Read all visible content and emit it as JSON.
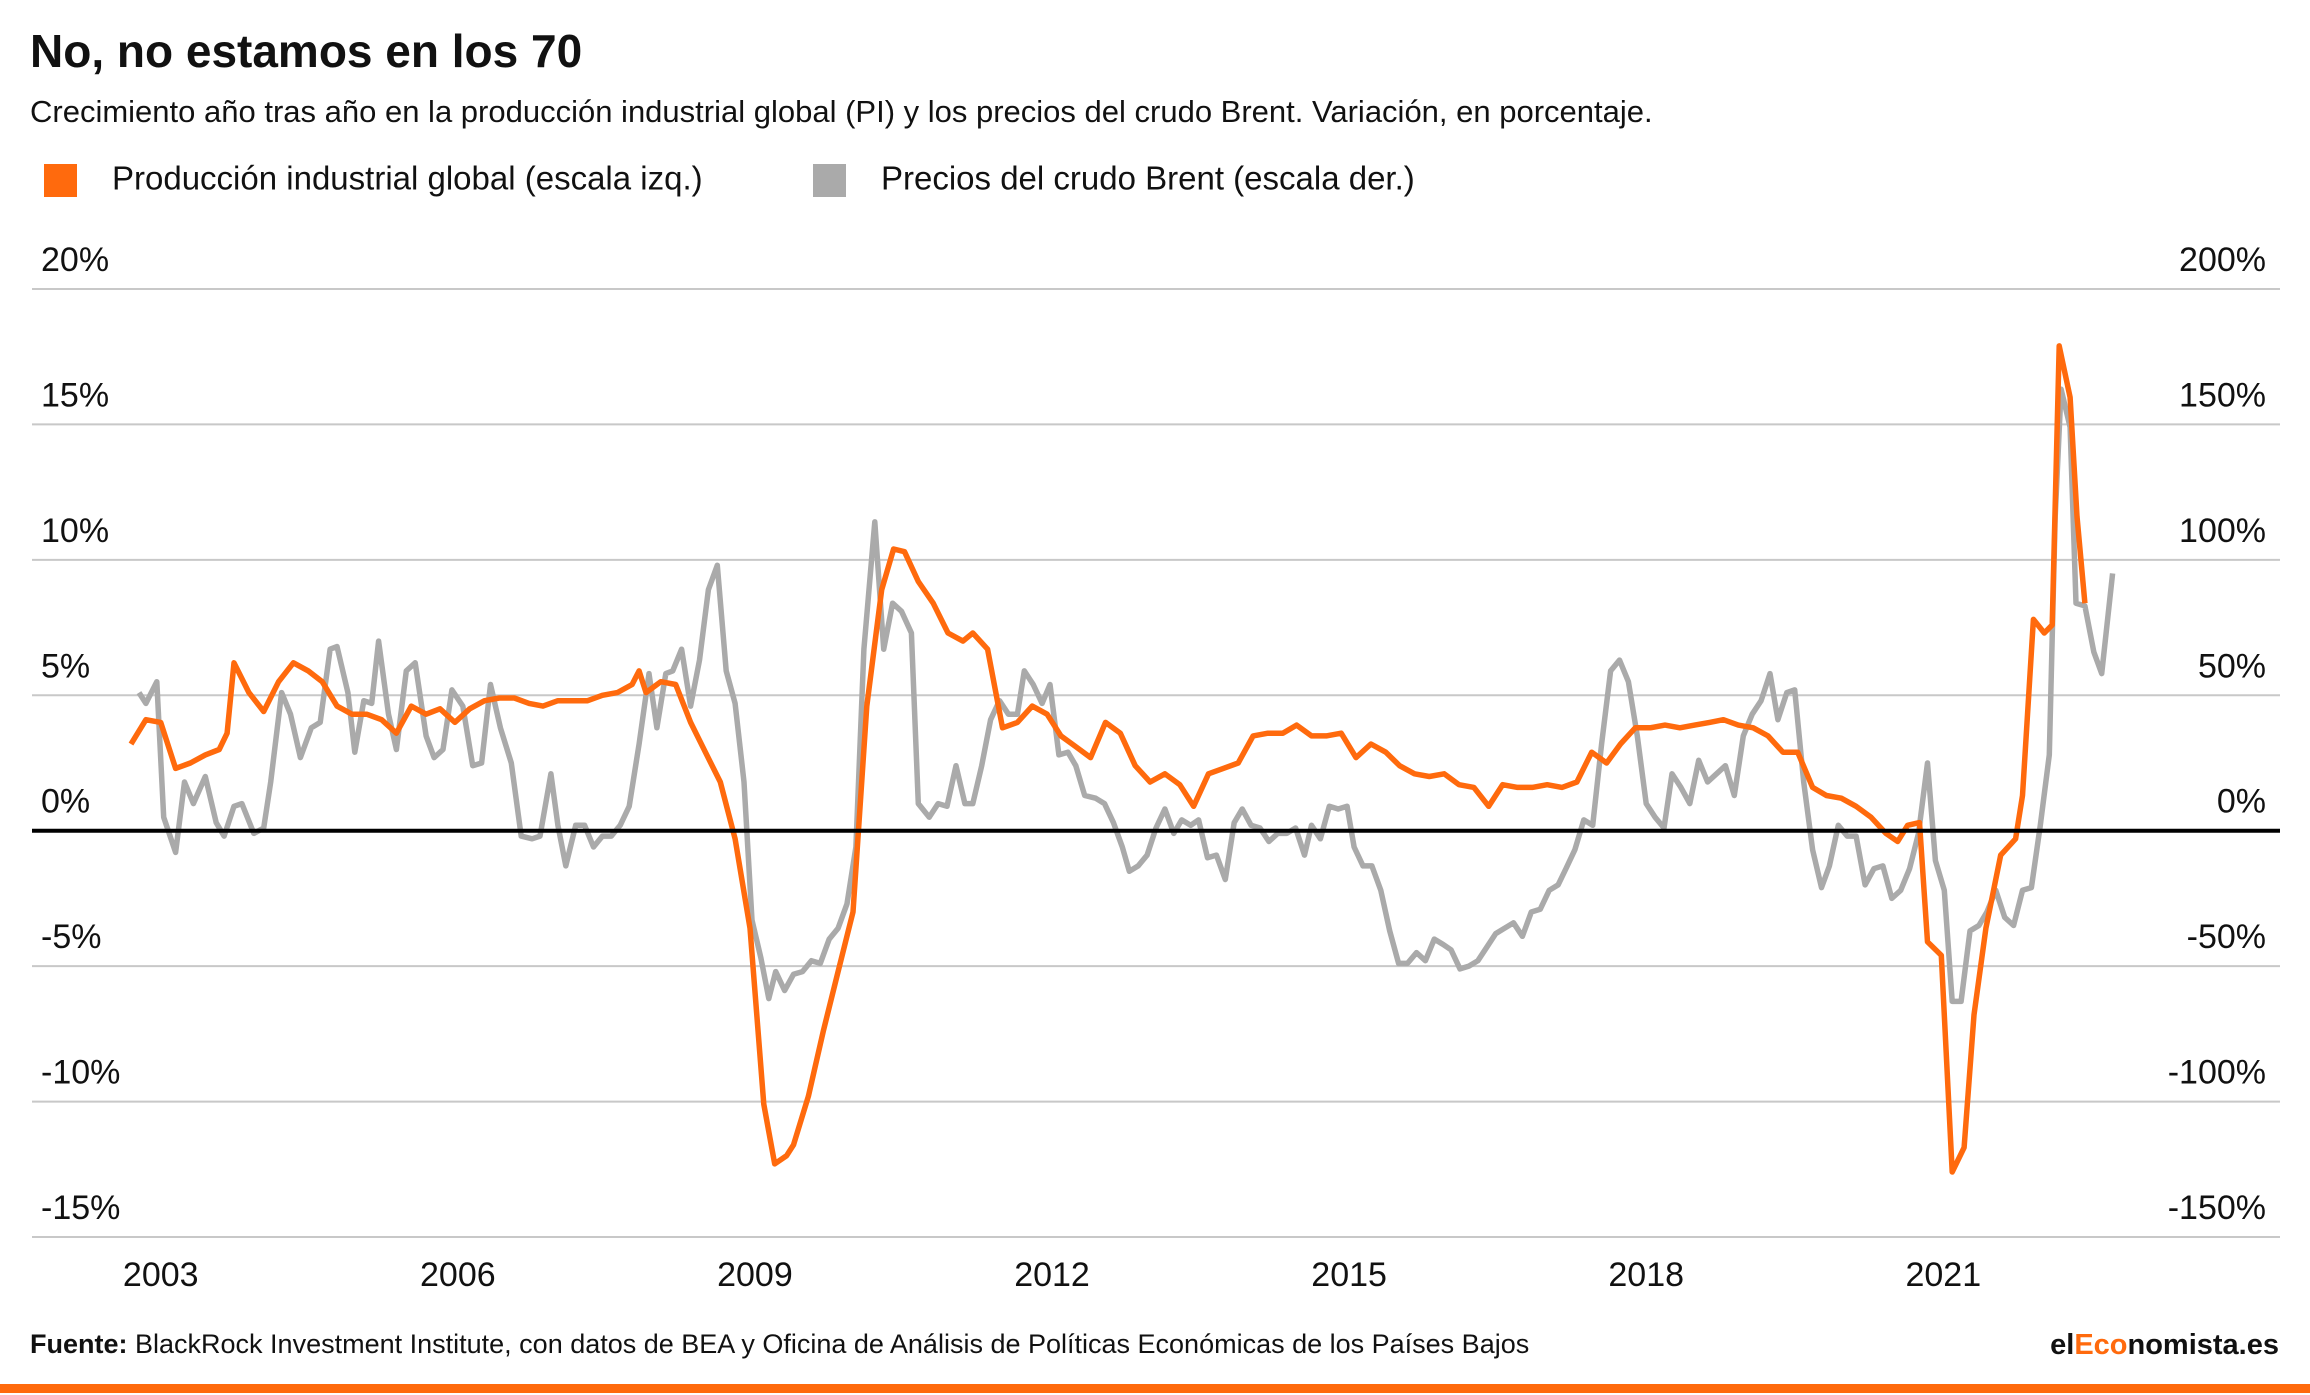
{
  "chart_data": {
    "type": "line",
    "title": "No, no estamos en los 70",
    "subtitle": "Crecimiento año tras año en la producción industrial global (PI) y los precios del crudo Brent. Variación, en porcentaje.",
    "source_label": "Fuente:",
    "source": "BlackRock Investment Institute, con datos de BEA y Oficina de Análisis de Políticas Económicas de los Países Bajos",
    "brand": [
      "el",
      "Eco",
      "nomista.es"
    ],
    "xlim": [
      2001.7,
      2024.4
    ],
    "xticks": [
      2003,
      2006,
      2009,
      2012,
      2015,
      2018,
      2021
    ],
    "ylim": [
      -15,
      20
    ],
    "yticks": [
      {
        "value": -15,
        "label": "-15%"
      },
      {
        "value": -10,
        "label": "-10%"
      },
      {
        "value": -5,
        "label": "-5%"
      },
      {
        "value": 0,
        "label": "0%"
      },
      {
        "value": 5,
        "label": "5%"
      },
      {
        "value": 10,
        "label": "10%"
      },
      {
        "value": 15,
        "label": "15%"
      },
      {
        "value": 20,
        "label": "20%"
      }
    ],
    "y2lim": [
      -150,
      200
    ],
    "y2ticks": [
      {
        "value": -150,
        "label": "-150%"
      },
      {
        "value": -100,
        "label": "-100%"
      },
      {
        "value": -50,
        "label": "-50%"
      },
      {
        "value": 0,
        "label": "0%"
      },
      {
        "value": 50,
        "label": "50%"
      },
      {
        "value": 100,
        "label": "100%"
      },
      {
        "value": 150,
        "label": "150%"
      },
      {
        "value": 200,
        "label": "200%"
      }
    ],
    "grid": true,
    "legend": "top-left",
    "series": [
      {
        "name": "Producción industrial global (escala izq.)",
        "color": "#ff6a0d",
        "axis": "y",
        "x": [
          2002.7,
          2002.85,
          2003.0,
          2003.15,
          2003.3,
          2003.45,
          2003.59,
          2003.67,
          2003.74,
          2003.89,
          2004.04,
          2004.19,
          2004.34,
          2004.49,
          2004.63,
          2004.78,
          2004.93,
          2005.08,
          2005.23,
          2005.38,
          2005.53,
          2005.68,
          2005.82,
          2005.97,
          2006.12,
          2006.27,
          2006.42,
          2006.57,
          2006.72,
          2006.86,
          2007.01,
          2007.16,
          2007.31,
          2007.46,
          2007.61,
          2007.76,
          2007.83,
          2007.9,
          2008.05,
          2008.2,
          2008.35,
          2008.5,
          2008.65,
          2008.8,
          2008.95,
          2009.09,
          2009.2,
          2009.32,
          2009.39,
          2009.54,
          2009.69,
          2009.84,
          2009.99,
          2010.13,
          2010.28,
          2010.4,
          2010.51,
          2010.65,
          2010.8,
          2010.95,
          2011.1,
          2011.2,
          2011.35,
          2011.5,
          2011.65,
          2011.8,
          2011.95,
          2012.09,
          2012.24,
          2012.39,
          2012.54,
          2012.69,
          2012.84,
          2012.99,
          2013.14,
          2013.29,
          2013.43,
          2013.58,
          2013.73,
          2013.88,
          2014.03,
          2014.18,
          2014.33,
          2014.47,
          2014.62,
          2014.77,
          2014.92,
          2015.07,
          2015.22,
          2015.37,
          2015.51,
          2015.66,
          2015.81,
          2015.96,
          2016.11,
          2016.26,
          2016.41,
          2016.55,
          2016.7,
          2016.85,
          2017.0,
          2017.15,
          2017.3,
          2017.45,
          2017.6,
          2017.74,
          2017.89,
          2018.04,
          2018.19,
          2018.34,
          2018.49,
          2018.64,
          2018.78,
          2018.93,
          2019.08,
          2019.23,
          2019.38,
          2019.53,
          2019.68,
          2019.82,
          2019.97,
          2020.12,
          2020.27,
          2020.42,
          2020.54,
          2020.64,
          2020.76,
          2020.84,
          2020.98,
          2021.09,
          2021.21,
          2021.31,
          2021.43,
          2021.58,
          2021.73,
          2021.8,
          2021.91,
          2022.02,
          2022.1,
          2022.17,
          2022.28,
          2022.35,
          2022.43
        ],
        "values": [
          3.2,
          4.1,
          4.0,
          2.3,
          2.5,
          2.8,
          3.0,
          3.6,
          6.2,
          5.1,
          4.4,
          5.5,
          6.2,
          5.9,
          5.5,
          4.6,
          4.3,
          4.3,
          4.1,
          3.6,
          4.6,
          4.3,
          4.5,
          4.0,
          4.5,
          4.8,
          4.9,
          4.9,
          4.7,
          4.6,
          4.8,
          4.8,
          4.8,
          5.0,
          5.1,
          5.4,
          5.9,
          5.1,
          5.5,
          5.4,
          4.0,
          2.9,
          1.8,
          -0.3,
          -3.6,
          -10.1,
          -12.3,
          -12.0,
          -11.6,
          -9.8,
          -7.4,
          -5.2,
          -3.0,
          4.6,
          8.9,
          10.4,
          10.3,
          9.2,
          8.4,
          7.3,
          7.0,
          7.3,
          6.7,
          3.8,
          4.0,
          4.6,
          4.3,
          3.5,
          3.1,
          2.7,
          4.0,
          3.6,
          2.4,
          1.8,
          2.1,
          1.7,
          0.9,
          2.1,
          2.3,
          2.5,
          3.5,
          3.6,
          3.6,
          3.9,
          3.5,
          3.5,
          3.6,
          2.7,
          3.2,
          2.9,
          2.4,
          2.1,
          2.0,
          2.1,
          1.7,
          1.6,
          0.9,
          1.7,
          1.6,
          1.6,
          1.7,
          1.6,
          1.8,
          2.9,
          2.5,
          3.2,
          3.8,
          3.8,
          3.9,
          3.8,
          3.9,
          4.0,
          4.1,
          3.9,
          3.8,
          3.5,
          2.9,
          2.9,
          1.6,
          1.3,
          1.2,
          0.9,
          0.5,
          -0.1,
          -0.4,
          0.2,
          0.3,
          -4.1,
          -4.6,
          -12.6,
          -11.7,
          -6.8,
          -3.6,
          -0.9,
          -0.3,
          1.3,
          7.8,
          7.3,
          7.6,
          17.9,
          16.0,
          11.6,
          8.4
        ]
      },
      {
        "name": "Precios del crudo Brent (escala der.)",
        "color": "#aaaaaa",
        "axis": "y2",
        "x": [
          2002.78,
          2002.85,
          2002.96,
          2003.03,
          2003.15,
          2003.24,
          2003.33,
          2003.45,
          2003.56,
          2003.64,
          2003.74,
          2003.82,
          2003.94,
          2004.04,
          2004.11,
          2004.22,
          2004.31,
          2004.41,
          2004.52,
          2004.61,
          2004.71,
          2004.78,
          2004.89,
          2004.96,
          2005.05,
          2005.13,
          2005.2,
          2005.3,
          2005.38,
          2005.48,
          2005.57,
          2005.68,
          2005.76,
          2005.85,
          2005.94,
          2006.05,
          2006.15,
          2006.24,
          2006.33,
          2006.43,
          2006.54,
          2006.64,
          2006.75,
          2006.83,
          2006.94,
          2007.01,
          2007.09,
          2007.19,
          2007.28,
          2007.37,
          2007.46,
          2007.55,
          2007.64,
          2007.73,
          2007.83,
          2007.93,
          2008.01,
          2008.1,
          2008.17,
          2008.26,
          2008.35,
          2008.44,
          2008.53,
          2008.62,
          2008.71,
          2008.8,
          2008.89,
          2008.97,
          2009.06,
          2009.14,
          2009.21,
          2009.3,
          2009.39,
          2009.48,
          2009.57,
          2009.66,
          2009.75,
          2009.84,
          2009.93,
          2010.02,
          2010.1,
          2010.21,
          2010.3,
          2010.39,
          2010.48,
          2010.58,
          2010.65,
          2010.76,
          2010.85,
          2010.94,
          2011.03,
          2011.12,
          2011.2,
          2011.29,
          2011.38,
          2011.47,
          2011.56,
          2011.65,
          2011.72,
          2011.81,
          2011.9,
          2011.98,
          2012.07,
          2012.16,
          2012.24,
          2012.33,
          2012.44,
          2012.53,
          2012.62,
          2012.71,
          2012.78,
          2012.87,
          2012.96,
          2013.05,
          2013.14,
          2013.23,
          2013.31,
          2013.4,
          2013.48,
          2013.57,
          2013.66,
          2013.75,
          2013.84,
          2013.92,
          2014.01,
          2014.1,
          2014.19,
          2014.28,
          2014.37,
          2014.46,
          2014.55,
          2014.62,
          2014.71,
          2014.8,
          2014.89,
          2014.98,
          2015.05,
          2015.14,
          2015.23,
          2015.32,
          2015.41,
          2015.5,
          2015.59,
          2015.68,
          2015.77,
          2015.86,
          2015.95,
          2016.03,
          2016.12,
          2016.21,
          2016.3,
          2016.39,
          2016.48,
          2016.57,
          2016.66,
          2016.75,
          2016.84,
          2016.93,
          2017.02,
          2017.11,
          2017.19,
          2017.28,
          2017.37,
          2017.46,
          2017.55,
          2017.64,
          2017.73,
          2017.82,
          2017.91,
          2018.0,
          2018.09,
          2018.18,
          2018.26,
          2018.35,
          2018.44,
          2018.53,
          2018.62,
          2018.71,
          2018.8,
          2018.89,
          2018.98,
          2019.07,
          2019.16,
          2019.25,
          2019.33,
          2019.42,
          2019.5,
          2019.59,
          2019.68,
          2019.77,
          2019.85,
          2019.94,
          2020.03,
          2020.12,
          2020.21,
          2020.3,
          2020.39,
          2020.48,
          2020.57,
          2020.66,
          2020.75,
          2020.84,
          2020.92,
          2021.01,
          2021.09,
          2021.18,
          2021.27,
          2021.36,
          2021.44,
          2021.53,
          2021.62,
          2021.71,
          2021.8,
          2021.89,
          2021.98,
          2022.07,
          2022.13,
          2022.19,
          2022.28,
          2022.34,
          2022.43,
          2022.52,
          2022.6,
          2022.71
        ],
        "values": [
          51,
          47,
          55,
          5,
          -8,
          18,
          10,
          20,
          3,
          -2,
          9,
          10,
          -1,
          1,
          18,
          51,
          43,
          27,
          38,
          40,
          67,
          68,
          51,
          29,
          48,
          47,
          70,
          43,
          30,
          59,
          62,
          35,
          27,
          30,
          52,
          46,
          24,
          25,
          54,
          38,
          25,
          -2,
          -3,
          -2,
          21,
          2,
          -13,
          2,
          2,
          -6,
          -2,
          -2,
          2,
          9,
          32,
          58,
          38,
          58,
          59,
          67,
          46,
          63,
          89,
          98,
          59,
          47,
          18,
          -33,
          -47,
          -62,
          -52,
          -59,
          -53,
          -52,
          -48,
          -49,
          -40,
          -36,
          -27,
          -6,
          67,
          114,
          67,
          84,
          81,
          73,
          10,
          5,
          10,
          9,
          24,
          10,
          10,
          24,
          41,
          48,
          43,
          43,
          59,
          54,
          47,
          54,
          28,
          29,
          24,
          13,
          12,
          10,
          3,
          -6,
          -15,
          -13,
          -9,
          1,
          8,
          -1,
          4,
          2,
          4,
          -10,
          -9,
          -18,
          3,
          8,
          2,
          1,
          -4,
          -1,
          -1,
          1,
          -9,
          2,
          -3,
          9,
          8,
          9,
          -6,
          -13,
          -13,
          -22,
          -37,
          -49,
          -49,
          -45,
          -48,
          -40,
          -42,
          -44,
          -51,
          -50,
          -48,
          -43,
          -38,
          -36,
          -34,
          -39,
          -30,
          -29,
          -22,
          -20,
          -14,
          -7,
          4,
          2,
          32,
          59,
          63,
          55,
          35,
          10,
          5,
          1,
          21,
          16,
          10,
          26,
          18,
          21,
          24,
          13,
          35,
          43,
          48,
          58,
          41,
          51,
          52,
          18,
          -7,
          -21,
          -13,
          2,
          -2,
          -2,
          -20,
          -14,
          -13,
          -25,
          -22,
          -14,
          -1,
          25,
          -11,
          -22,
          -63,
          -63,
          -37,
          -35,
          -30,
          -22,
          -32,
          -35,
          -22,
          -21,
          2,
          28,
          116,
          163,
          149,
          84,
          83,
          66,
          58,
          95
        ]
      }
    ]
  }
}
